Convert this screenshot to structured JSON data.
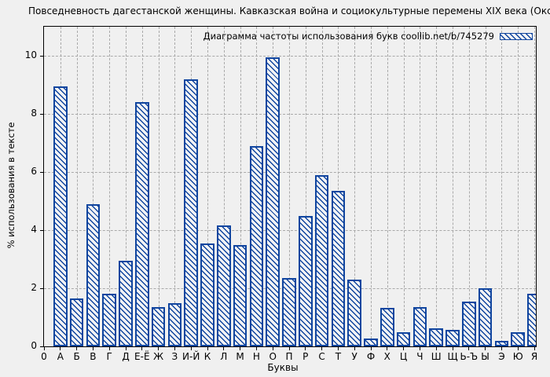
{
  "page": {
    "background_color": "#f0f0f0"
  },
  "chart_data": {
    "type": "bar",
    "title": "Повседневность дагестанской женщины. Кавказская война и социокультурные перемены XIX века (Оксана Мутиева)",
    "legend": "Диаграмма частоты использования букв coollib.net/b/745279",
    "legend_position": "top-right-inside",
    "xlabel": "Буквы",
    "ylabel": "% использования в тексте",
    "categories": [
      "0",
      "А",
      "Б",
      "В",
      "Г",
      "Д",
      "Е-Ё",
      "Ж",
      "З",
      "И-Й",
      "К",
      "Л",
      "М",
      "Н",
      "О",
      "П",
      "Р",
      "С",
      "Т",
      "У",
      "Ф",
      "Х",
      "Ц",
      "Ч",
      "Ш",
      "Щ",
      "Ь-Ъ",
      "Ы",
      "Э",
      "Ю",
      "Я"
    ],
    "values": [
      null,
      8.95,
      1.65,
      4.9,
      1.8,
      2.95,
      8.4,
      1.35,
      1.5,
      9.2,
      3.55,
      4.15,
      3.5,
      6.9,
      9.95,
      2.35,
      4.5,
      5.9,
      5.35,
      2.3,
      0.27,
      1.33,
      0.5,
      1.35,
      0.63,
      0.57,
      1.55,
      2.0,
      0.2,
      0.5,
      1.8
    ],
    "yticks": [
      0,
      2,
      4,
      6,
      8,
      10
    ],
    "ylim": [
      0,
      11.0
    ],
    "grid": true,
    "bar_style": "diagonal-hatch",
    "bar_color": "#10459f",
    "grid_color": "#a9a9a9"
  }
}
